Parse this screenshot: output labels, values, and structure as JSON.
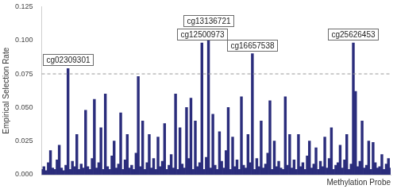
{
  "chart_data": {
    "type": "bar",
    "x_label": "Methylation Probe",
    "y_label": "Empirical Selection Rate",
    "color": "#2b2d7c",
    "grid": false,
    "tick_labels": "y",
    "ylim": [
      0,
      0.125
    ],
    "yticks": [
      {
        "value": 0,
        "label": "0.000"
      },
      {
        "value": 0.025,
        "label": "0.025"
      },
      {
        "value": 0.05,
        "label": "0.050"
      },
      {
        "value": 0.075,
        "label": "0.075"
      },
      {
        "value": 0.1,
        "label": "0.100"
      },
      {
        "value": 0.125,
        "label": "0.125"
      }
    ],
    "reference_line": {
      "y": 0.075,
      "line_style": "dashed"
    },
    "annotations": [
      {
        "text": "cg02309301",
        "x": 12,
        "y": 0.079
      },
      {
        "text": "cg12500973",
        "x": 73,
        "y": 0.098
      },
      {
        "text": "cg13136721",
        "x": 76,
        "y": 0.101
      },
      {
        "text": "cg16657538",
        "x": 96,
        "y": 0.09
      },
      {
        "text": "cg25626453",
        "x": 142,
        "y": 0.098
      }
    ],
    "categories": [
      null,
      null,
      null,
      null,
      null,
      null,
      null,
      null,
      null,
      null,
      null,
      null,
      null,
      null,
      null,
      null,
      null,
      null,
      null,
      null,
      null,
      null,
      null,
      null,
      null,
      null,
      null,
      null,
      null,
      null,
      null,
      null,
      null,
      null,
      null,
      null,
      null,
      null,
      null,
      null,
      null,
      null,
      null,
      null,
      null,
      null,
      null,
      null,
      null,
      null,
      null,
      null,
      null,
      null,
      null,
      null,
      null,
      null,
      null,
      null,
      null,
      null,
      null,
      null,
      null,
      null,
      null,
      null,
      null,
      null,
      null,
      null,
      null,
      null,
      null,
      null,
      null,
      null,
      null,
      null,
      null,
      null,
      null,
      null,
      null,
      null,
      null,
      null,
      null,
      null,
      null,
      null,
      null,
      null,
      null,
      null,
      null,
      null,
      null,
      null,
      null,
      null,
      null,
      null,
      null,
      null,
      null,
      null,
      null,
      null,
      null,
      null,
      null,
      null,
      null,
      null,
      null,
      null,
      null,
      null,
      null,
      null,
      null,
      null,
      null,
      null,
      null,
      null,
      null,
      null,
      null,
      null,
      null,
      null,
      null,
      null,
      null,
      null,
      null,
      null,
      null,
      null,
      null,
      null,
      null,
      null,
      null,
      null,
      null,
      null,
      null,
      null,
      null,
      null,
      null,
      null,
      null,
      null,
      null,
      null
    ],
    "values": [
      0.004,
      0.006,
      0.003,
      0.009,
      0.018,
      0.005,
      0.004,
      0.011,
      0.022,
      0.005,
      0.003,
      0.007,
      0.079,
      0.004,
      0.01,
      0.006,
      0.03,
      0.004,
      0.008,
      0.005,
      0.048,
      0.006,
      0.004,
      0.012,
      0.056,
      0.005,
      0.009,
      0.035,
      0.004,
      0.06,
      0.006,
      0.004,
      0.014,
      0.025,
      0.005,
      0.008,
      0.046,
      0.004,
      0.011,
      0.03,
      0.005,
      0.007,
      0.004,
      0.016,
      0.073,
      0.006,
      0.04,
      0.004,
      0.009,
      0.03,
      0.005,
      0.012,
      0.004,
      0.028,
      0.006,
      0.01,
      0.038,
      0.004,
      0.007,
      0.015,
      0.005,
      0.06,
      0.004,
      0.035,
      0.008,
      0.005,
      0.05,
      0.012,
      0.057,
      0.004,
      0.04,
      0.006,
      0.009,
      0.098,
      0.004,
      0.013,
      0.101,
      0.005,
      0.045,
      0.007,
      0.004,
      0.032,
      0.01,
      0.005,
      0.018,
      0.05,
      0.004,
      0.028,
      0.006,
      0.011,
      0.004,
      0.058,
      0.007,
      0.005,
      0.03,
      0.009,
      0.09,
      0.004,
      0.012,
      0.006,
      0.04,
      0.005,
      0.008,
      0.016,
      0.055,
      0.004,
      0.025,
      0.006,
      0.01,
      0.005,
      0.004,
      0.058,
      0.007,
      0.03,
      0.005,
      0.011,
      0.004,
      0.03,
      0.006,
      0.009,
      0.004,
      0.014,
      0.025,
      0.005,
      0.008,
      0.02,
      0.004,
      0.01,
      0.006,
      0.028,
      0.005,
      0.012,
      0.035,
      0.004,
      0.007,
      0.009,
      0.022,
      0.005,
      0.011,
      0.03,
      0.004,
      0.008,
      0.098,
      0.062,
      0.006,
      0.01,
      0.04,
      0.005,
      0.007,
      0.025,
      0.004,
      0.024,
      0.009,
      0.005,
      0.006,
      0.015,
      0.004,
      0.008,
      0.012,
      0.005
    ]
  }
}
